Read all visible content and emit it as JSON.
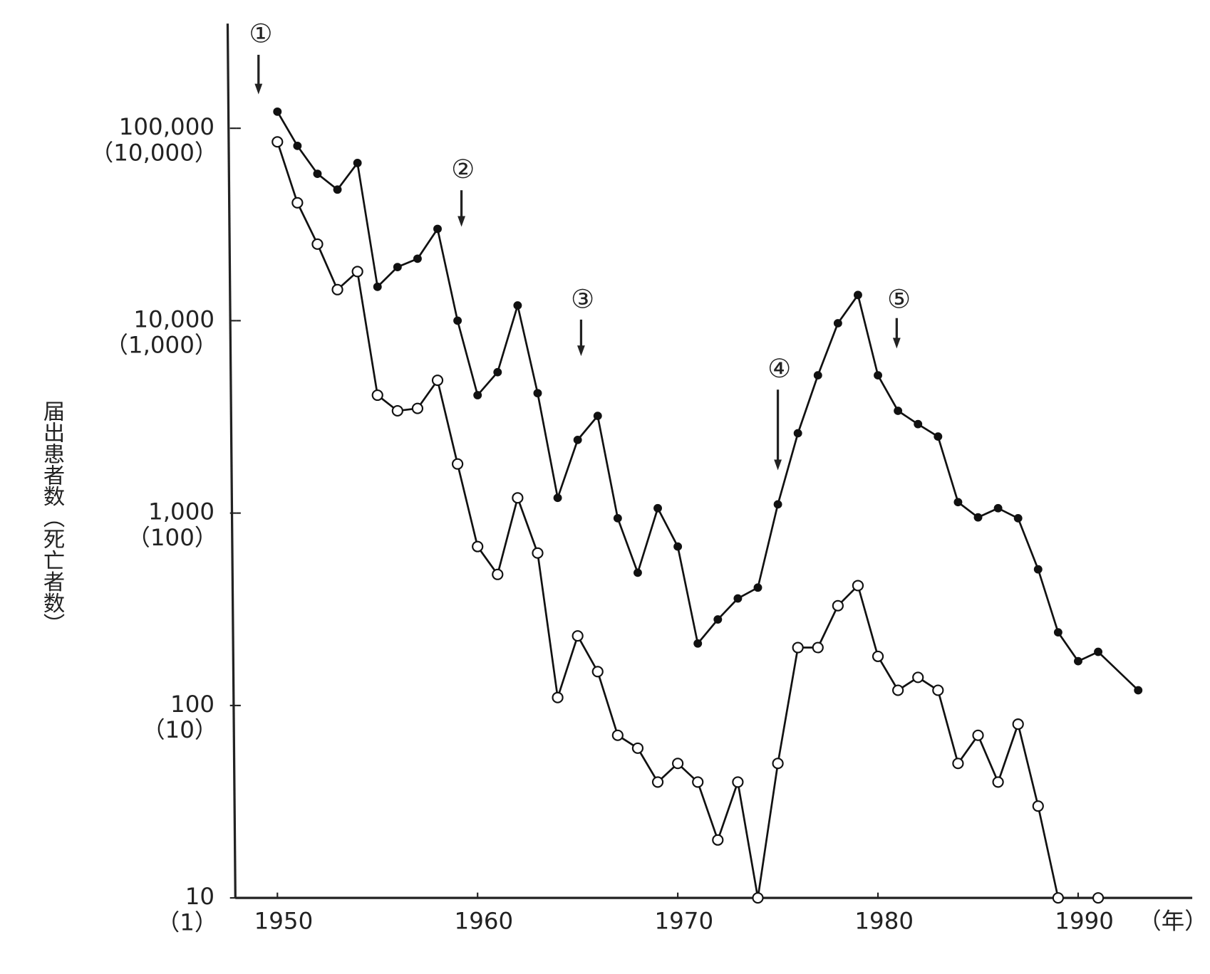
{
  "chart_data": {
    "type": "line",
    "y_label": "届出患者数（死亡者数）",
    "x_label": "（年）",
    "log_scale": true,
    "x": [
      1950,
      1951,
      1952,
      1953,
      1954,
      1955,
      1956,
      1957,
      1958,
      1959,
      1960,
      1961,
      1962,
      1963,
      1964,
      1965,
      1966,
      1967,
      1968,
      1969,
      1970,
      1971,
      1972,
      1973,
      1974,
      1975,
      1976,
      1977,
      1978,
      1979,
      1980,
      1981,
      1982,
      1983,
      1984,
      1985,
      1986,
      1987,
      1988,
      1989,
      1990,
      1991,
      1993
    ],
    "series": [
      {
        "marker": "filled",
        "color": "#111111",
        "axis": "y",
        "values": [
          122000,
          81000,
          58000,
          48000,
          66000,
          15000,
          19000,
          21000,
          30000,
          10000,
          4100,
          5400,
          12000,
          4200,
          1200,
          2400,
          3200,
          940,
          490,
          1060,
          670,
          210,
          280,
          360,
          410,
          1110,
          2600,
          5200,
          9700,
          13600,
          5200,
          3400,
          2900,
          2500,
          1140,
          950,
          1060,
          940,
          510,
          240,
          170,
          190,
          120
        ]
      },
      {
        "marker": "open",
        "color": "#111111",
        "axis": "y2",
        "values": [
          8500,
          4100,
          2500,
          1450,
          1800,
          410,
          340,
          350,
          490,
          180,
          67,
          48,
          120,
          62,
          11,
          23,
          15,
          7,
          6,
          4,
          5,
          4,
          2,
          4,
          1,
          5,
          20,
          20,
          33,
          42,
          18,
          12,
          14,
          12,
          5,
          7,
          4,
          8,
          3,
          1,
          null,
          1,
          null
        ]
      }
    ],
    "annotations": [
      "①",
      "②",
      "③",
      "④",
      "⑤"
    ],
    "xlim": [
      1947.9,
      1995.7
    ],
    "xticks": [
      1950,
      1960,
      1970,
      1980,
      1990
    ],
    "ylim": [
      10,
      350000
    ],
    "yticks": [
      10,
      100,
      {
        "value": 1000,
        "label": "1,000"
      },
      {
        "value": 10000,
        "label": "10,000"
      },
      {
        "value": 100000,
        "label": "100,000"
      }
    ],
    "y2lim": [
      1,
      35000
    ],
    "y2ticks": [
      {
        "value": 1,
        "label": "（1）"
      },
      {
        "value": 10,
        "label": "（10）"
      },
      {
        "value": 100,
        "label": "（100）"
      },
      {
        "value": 1000,
        "label": "（1,000）"
      },
      {
        "value": 10000,
        "label": "（10,000）"
      }
    ]
  }
}
